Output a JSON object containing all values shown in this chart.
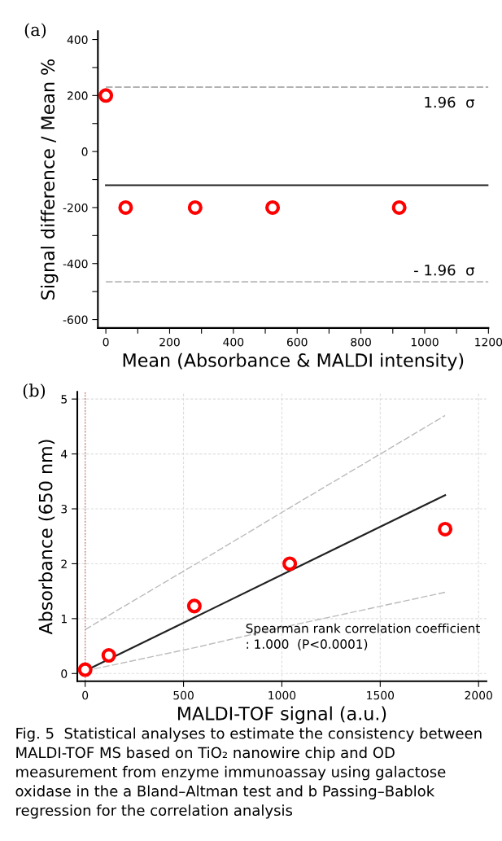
{
  "chart_data": [
    {
      "type": "scatter",
      "title": "(a)",
      "xlabel": "Mean (Absorbance & MALDI intensity)",
      "ylabel": "Signal difference / Mean %",
      "x": [
        0,
        62,
        280,
        523,
        920
      ],
      "series": [
        {
          "color": "#ff0000",
          "values": [
            200,
            -200,
            -200,
            -200,
            -200
          ]
        }
      ],
      "marker": "circle",
      "xlim": [
        -25,
        1200
      ],
      "ylim": [
        -630,
        430
      ],
      "xticks": [
        0,
        {
          "value": 100,
          "label": null
        },
        200,
        {
          "value": 300,
          "label": null
        },
        400,
        {
          "value": 500,
          "label": null
        },
        600,
        {
          "value": 700,
          "label": null
        },
        800,
        {
          "value": 900,
          "label": null
        },
        1000,
        {
          "value": 1100,
          "label": null
        },
        1200
      ],
      "yticks": [
        -600,
        {
          "value": -500,
          "label": null
        },
        -400,
        {
          "value": -300,
          "label": null
        },
        -200,
        {
          "value": -100,
          "label": null
        },
        0,
        {
          "value": 100,
          "label": null
        },
        200,
        {
          "value": 300,
          "label": null
        },
        400
      ],
      "ref_lines": [
        {
          "axis": "y",
          "value": 230,
          "label": "1.96  σ",
          "color": "#999999",
          "line_style": "dashed"
        },
        {
          "axis": "y",
          "value": -120,
          "color": "#222222",
          "line_style": "solid"
        },
        {
          "axis": "y",
          "value": -465,
          "label": "- 1.96  σ",
          "color": "#999999",
          "line_style": "dashed"
        }
      ],
      "grid": false,
      "legend": false
    },
    {
      "type": "scatter",
      "title": "(b)",
      "xlabel": "MALDI-TOF signal (a.u.)",
      "ylabel": "Absorbance (650 nm)",
      "x": [
        0,
        120,
        555,
        1040,
        1830
      ],
      "series": [
        {
          "type": "line",
          "color": "#bbbbbb",
          "line_style": "dashed",
          "marker": "none",
          "values": [
            0.8,
            1.06,
            1.98,
            3.02,
            4.7
          ]
        },
        {
          "type": "line",
          "color": "#222222",
          "line_style": "solid",
          "marker": "none",
          "values": [
            0.05,
            0.26,
            1.02,
            1.87,
            3.25
          ]
        },
        {
          "type": "line",
          "color": "#bbbbbb",
          "line_style": "dashed",
          "marker": "none",
          "values": [
            0.05,
            0.14,
            0.47,
            0.87,
            1.48
          ]
        },
        {
          "color": "#ff0000",
          "marker": "circle",
          "values": [
            0.07,
            0.33,
            1.23,
            2.0,
            2.63
          ]
        }
      ],
      "xlim": [
        -40,
        2040
      ],
      "ylim": [
        -0.14,
        5.13
      ],
      "xticks": [
        0,
        500,
        1000,
        1500,
        2000
      ],
      "yticks": [
        0,
        1,
        2,
        3,
        4,
        5
      ],
      "ref_lines": [
        {
          "axis": "x",
          "value": 0,
          "color": "#cc6666",
          "line_style": "dotted"
        }
      ],
      "grid": true,
      "legend": false,
      "annotations": [
        "Spearman rank correlation coefficient\n: 1.000  (P<0.0001)",
        "Fig. 5  Statistical analyses to estimate the consistency between MALDI-TOF MS based on TiO₂ nanowire chip and OD measurement from enzyme immunoassay using galactose oxidase in the a Bland–Altman test and b Passing–Bablok regression for the correlation analysis"
      ]
    }
  ]
}
